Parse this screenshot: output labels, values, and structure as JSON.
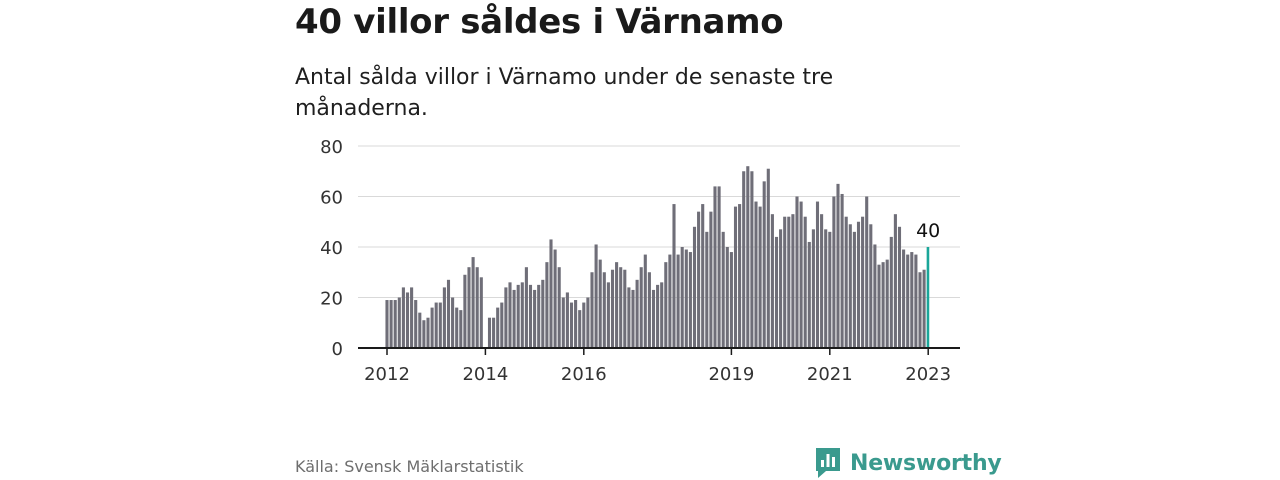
{
  "header": {
    "title": "40 villor såldes i Värnamo",
    "subtitle": "Antal sålda villor i Värnamo under de senaste tre månaderna."
  },
  "footer": {
    "source": "Källa: Svensk Mäklarstatistik",
    "brand": "Newsworthy"
  },
  "colors": {
    "bar": "#6f6e78",
    "highlight": "#1aa699",
    "grid": "#d9d9d9",
    "axis": "#1a1a1a",
    "brand": "#3a9a8e"
  },
  "icons": {
    "logo": "newsworthy-logo-icon"
  },
  "chart_data": {
    "type": "bar",
    "title": "Antal sålda villor",
    "xlabel": "",
    "ylabel": "",
    "ylim": [
      0,
      80
    ],
    "yticks": [
      0,
      20,
      40,
      60,
      80
    ],
    "xticks": [
      {
        "label": "2012",
        "index": 0
      },
      {
        "label": "2014",
        "index": 24
      },
      {
        "label": "2016",
        "index": 48
      },
      {
        "label": "2019",
        "index": 84
      },
      {
        "label": "2021",
        "index": 108
      },
      {
        "label": "2023",
        "index": 132
      }
    ],
    "highlight_label": "40",
    "values": [
      19,
      19,
      19,
      20,
      24,
      22,
      24,
      19,
      14,
      11,
      12,
      16,
      18,
      18,
      24,
      27,
      20,
      16,
      15,
      29,
      32,
      36,
      32,
      28,
      0,
      12,
      12,
      16,
      18,
      24,
      26,
      23,
      25,
      26,
      32,
      25,
      23,
      25,
      27,
      34,
      43,
      39,
      32,
      20,
      22,
      18,
      19,
      15,
      18,
      20,
      30,
      41,
      35,
      30,
      26,
      31,
      34,
      32,
      31,
      24,
      23,
      27,
      32,
      37,
      30,
      23,
      25,
      26,
      34,
      37,
      57,
      37,
      40,
      39,
      38,
      48,
      54,
      57,
      46,
      54,
      64,
      64,
      46,
      40,
      38,
      56,
      57,
      70,
      72,
      70,
      58,
      56,
      66,
      71,
      53,
      44,
      47,
      52,
      52,
      53,
      60,
      58,
      52,
      42,
      47,
      58,
      53,
      47,
      46,
      60,
      65,
      61,
      52,
      49,
      46,
      50,
      52,
      60,
      49,
      41,
      33,
      34,
      35,
      44,
      53,
      48,
      39,
      37,
      38,
      37,
      30,
      31,
      40
    ]
  }
}
